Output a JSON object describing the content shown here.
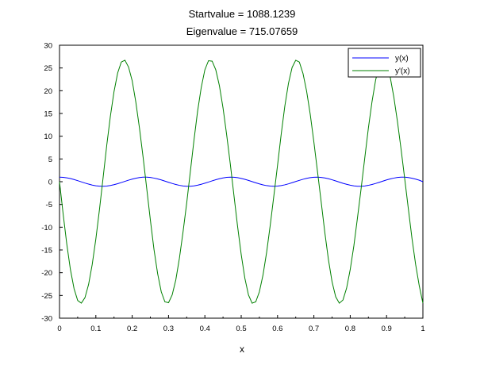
{
  "chart_data": {
    "type": "line",
    "title_lines": [
      "Startvalue =  1088.1239",
      "Eigenvalue = 715.07659"
    ],
    "xlabel": "x",
    "ylabel": "",
    "xlim": [
      0,
      1
    ],
    "ylim": [
      -30,
      30
    ],
    "xticks": [
      "0",
      "0.1",
      "0.2",
      "0.3",
      "0.4",
      "0.5",
      "0.6",
      "0.7",
      "0.8",
      "0.9",
      "1"
    ],
    "yticks": [
      "-30",
      "-25",
      "-20",
      "-15",
      "-10",
      "-5",
      "0",
      "5",
      "10",
      "15",
      "20",
      "25",
      "30"
    ],
    "grid": false,
    "legend_position": "top-right",
    "x": [
      0,
      0.01,
      0.02,
      0.03,
      0.04,
      0.05,
      0.06,
      0.07,
      0.08,
      0.09,
      0.1,
      0.11,
      0.12,
      0.13,
      0.14,
      0.15,
      0.16,
      0.17,
      0.18,
      0.19,
      0.2,
      0.21,
      0.22,
      0.23,
      0.24,
      0.25,
      0.26,
      0.27,
      0.28,
      0.29,
      0.3,
      0.31,
      0.32,
      0.33,
      0.34,
      0.35,
      0.36,
      0.37,
      0.38,
      0.39,
      0.4,
      0.41,
      0.42,
      0.43,
      0.44,
      0.45,
      0.46,
      0.47,
      0.48,
      0.49,
      0.5,
      0.51,
      0.52,
      0.53,
      0.54,
      0.55,
      0.56,
      0.57,
      0.58,
      0.59,
      0.6,
      0.61,
      0.62,
      0.63,
      0.64,
      0.65,
      0.66,
      0.67,
      0.68,
      0.69,
      0.7,
      0.71,
      0.72,
      0.73,
      0.74,
      0.75,
      0.76,
      0.77,
      0.78,
      0.79,
      0.8,
      0.81,
      0.82,
      0.83,
      0.84,
      0.85,
      0.86,
      0.87,
      0.88,
      0.89,
      0.9,
      0.91,
      0.92,
      0.93,
      0.94,
      0.95,
      0.96,
      0.97,
      0.98,
      0.99,
      1
    ],
    "series": [
      {
        "name": "y(x)",
        "color": "#0000ff",
        "values": [
          1.0,
          0.964,
          0.858,
          0.691,
          0.475,
          0.228,
          -0.033,
          -0.291,
          -0.529,
          -0.732,
          -0.887,
          -0.982,
          -1.0,
          -0.948,
          -0.829,
          -0.654,
          -0.431,
          -0.181,
          0.08,
          0.336,
          0.569,
          0.765,
          0.911,
          0.995,
          0.999,
          0.929,
          0.797,
          0.614,
          0.386,
          0.133,
          -0.128,
          -0.38,
          -0.61,
          -0.795,
          -0.931,
          -0.999,
          -0.994,
          -0.908,
          -0.762,
          -0.564,
          -0.331,
          -0.074,
          0.186,
          0.436,
          0.659,
          0.834,
          0.95,
          0.999,
          0.978,
          0.884,
          0.726,
          0.524,
          0.282,
          0.027,
          -0.234,
          -0.479,
          -0.697,
          -0.86,
          -0.966,
          -0.999,
          -0.961,
          -0.855,
          -0.687,
          -0.47,
          -0.224,
          0.039,
          0.295,
          0.533,
          0.737,
          0.89,
          0.982,
          1.0,
          0.946,
          0.826,
          0.649,
          0.427,
          0.175,
          -0.085,
          -0.341,
          -0.574,
          -0.768,
          -0.914,
          -0.995,
          -0.999,
          -0.928,
          -0.794,
          -0.608,
          -0.38,
          -0.128,
          0.133,
          0.385,
          0.613,
          0.797,
          0.932,
          0.999,
          0.993,
          0.907,
          0.759,
          0.561,
          0.328,
          0.0
        ]
      },
      {
        "name": "y'(x)",
        "color": "#008000",
        "values": [
          0.0,
          -7.1,
          -13.7,
          -19.3,
          -23.5,
          -26.1,
          -26.7,
          -25.5,
          -22.6,
          -18.2,
          -12.6,
          -6.1,
          0.9,
          8.0,
          14.4,
          19.8,
          23.9,
          26.3,
          26.7,
          25.2,
          22.2,
          17.5,
          11.8,
          5.4,
          -1.5,
          -8.4,
          -14.9,
          -20.2,
          -24.2,
          -26.4,
          -26.6,
          -24.9,
          -21.6,
          -16.8,
          -11.0,
          -4.7,
          2.2,
          9.1,
          15.5,
          20.7,
          24.6,
          26.6,
          26.5,
          24.6,
          21.1,
          16.2,
          10.3,
          3.9,
          -3.0,
          -9.8,
          -16.0,
          -21.2,
          -24.9,
          -26.7,
          -26.4,
          -24.2,
          -20.5,
          -15.5,
          -9.5,
          -3.0,
          3.6,
          10.4,
          16.6,
          21.6,
          25.1,
          26.7,
          26.3,
          23.8,
          19.9,
          14.8,
          8.7,
          2.2,
          -4.4,
          -11.1,
          -17.1,
          -22.0,
          -25.3,
          -26.7,
          -26.0,
          -23.4,
          -19.3,
          -14.1,
          -7.9,
          -1.5,
          5.2,
          11.8,
          17.6,
          22.4,
          25.5,
          26.7,
          25.8,
          23.0,
          18.6,
          13.2,
          7.1,
          0.6,
          -6.0,
          -12.5,
          -18.2,
          -22.9,
          -26.7
        ]
      }
    ]
  }
}
